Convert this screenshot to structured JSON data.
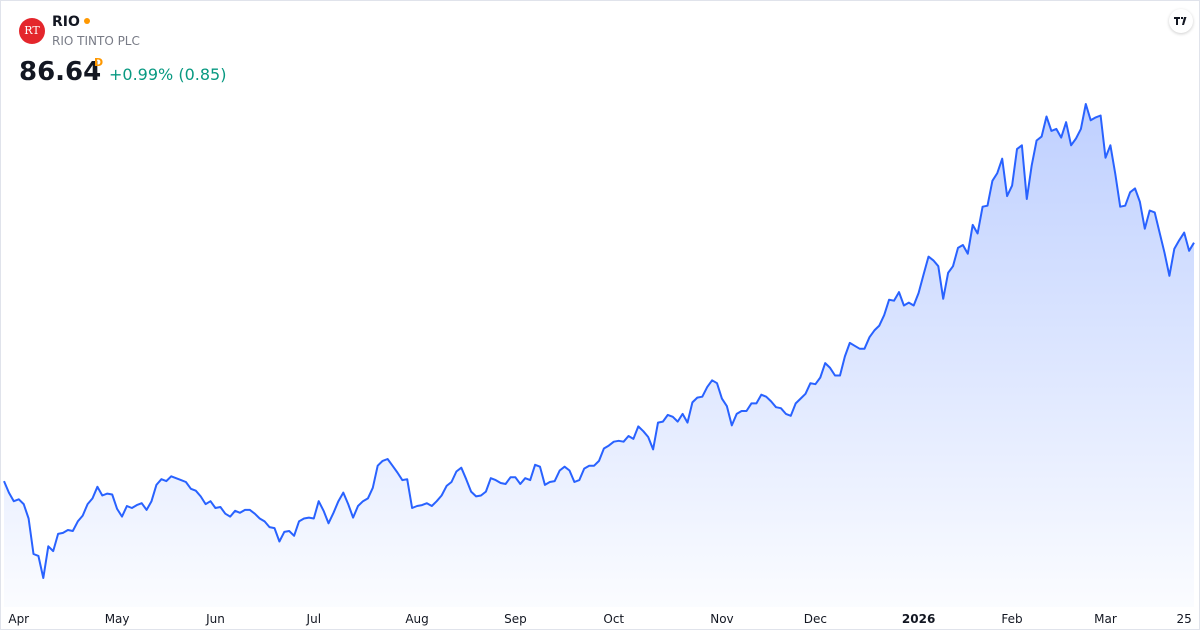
{
  "header": {
    "logo_text": "RT",
    "symbol": "RIO",
    "name": "RIO TINTO PLC",
    "price": "86.64",
    "interval": "D",
    "change": "+0.99% (0.85)"
  },
  "chart_data": {
    "type": "area",
    "color": "#2962ff",
    "categories": [
      null,
      null,
      null,
      "Apr",
      null,
      null,
      null,
      null,
      null,
      null,
      null,
      null,
      null,
      null,
      null,
      null,
      null,
      null,
      null,
      null,
      null,
      null,
      null,
      "May",
      null,
      null,
      null,
      null,
      null,
      null,
      null,
      null,
      null,
      null,
      null,
      null,
      null,
      null,
      null,
      null,
      null,
      null,
      null,
      "Jun",
      null,
      null,
      null,
      null,
      null,
      null,
      null,
      null,
      null,
      null,
      null,
      null,
      null,
      null,
      null,
      null,
      null,
      null,
      null,
      "Jul",
      null,
      null,
      null,
      null,
      null,
      null,
      null,
      null,
      null,
      null,
      null,
      null,
      null,
      null,
      null,
      null,
      null,
      null,
      null,
      null,
      "Aug",
      null,
      null,
      null,
      null,
      null,
      null,
      null,
      null,
      null,
      null,
      null,
      null,
      null,
      null,
      null,
      null,
      null,
      null,
      null,
      "Sep",
      null,
      null,
      null,
      null,
      null,
      null,
      null,
      null,
      null,
      null,
      null,
      null,
      null,
      null,
      null,
      null,
      null,
      null,
      null,
      "Oct",
      null,
      null,
      null,
      null,
      null,
      null,
      null,
      null,
      null,
      null,
      null,
      null,
      null,
      null,
      null,
      null,
      null,
      null,
      null,
      null,
      null,
      "Nov",
      null,
      null,
      null,
      null,
      null,
      null,
      null,
      null,
      null,
      null,
      null,
      null,
      null,
      null,
      null,
      null,
      null,
      null,
      "Dec",
      null,
      null,
      null,
      null,
      null,
      null,
      null,
      null,
      null,
      null,
      null,
      null,
      null,
      null,
      null,
      null,
      null,
      null,
      null,
      null,
      "2026",
      null,
      null,
      null,
      null,
      null,
      null,
      null,
      null,
      null,
      null,
      null,
      null,
      null,
      null,
      null,
      null,
      null,
      null,
      "Feb",
      null,
      null,
      null,
      null,
      null,
      null,
      null,
      null,
      null,
      null,
      null,
      null,
      null,
      null,
      null,
      null,
      null,
      null,
      "Mar",
      null,
      null,
      null,
      null,
      null,
      null,
      null,
      null,
      null,
      null,
      null,
      null,
      null,
      null,
      null,
      "25",
      null,
      null
    ],
    "values": [
      61.8,
      60.6,
      59.7,
      59.9,
      59.4,
      57.9,
      54.2,
      54.0,
      51.7,
      55.0,
      54.5,
      56.3,
      56.4,
      56.7,
      56.6,
      57.6,
      58.2,
      59.4,
      60.0,
      61.2,
      60.3,
      60.5,
      60.4,
      58.9,
      58.1,
      59.2,
      59.0,
      59.3,
      59.5,
      58.8,
      59.7,
      61.4,
      62.0,
      61.8,
      62.3,
      62.1,
      61.9,
      61.7,
      61.0,
      60.8,
      60.2,
      59.4,
      59.7,
      59.0,
      59.1,
      58.4,
      58.1,
      58.7,
      58.5,
      58.8,
      58.8,
      58.4,
      57.9,
      57.6,
      57.0,
      56.9,
      55.5,
      56.5,
      56.6,
      56.1,
      57.6,
      57.9,
      58.0,
      57.9,
      59.7,
      58.7,
      57.4,
      58.5,
      59.7,
      60.6,
      59.4,
      58.0,
      59.2,
      59.7,
      60.0,
      61.1,
      63.4,
      63.9,
      64.1,
      63.4,
      62.7,
      61.9,
      62.0,
      59.0,
      59.2,
      59.3,
      59.5,
      59.2,
      59.7,
      60.3,
      61.3,
      61.7,
      62.8,
      63.2,
      62.0,
      60.7,
      60.2,
      60.3,
      60.7,
      62.1,
      61.9,
      61.6,
      61.5,
      62.2,
      62.2,
      61.5,
      62.1,
      61.9,
      63.5,
      63.3,
      61.4,
      61.7,
      61.8,
      62.9,
      63.3,
      62.9,
      61.7,
      61.9,
      63.1,
      63.4,
      63.4,
      63.9,
      65.2,
      65.5,
      65.9,
      66.0,
      65.9,
      66.5,
      66.2,
      67.5,
      67.0,
      66.4,
      65.1,
      67.9,
      68.0,
      68.7,
      68.5,
      68.0,
      68.8,
      67.9,
      70.0,
      70.5,
      70.6,
      71.6,
      72.3,
      72.0,
      70.4,
      69.6,
      67.6,
      68.8,
      69.1,
      69.1,
      69.9,
      69.9,
      70.8,
      70.6,
      70.1,
      69.5,
      69.4,
      68.8,
      68.6,
      69.9,
      70.4,
      70.9,
      72.0,
      71.9,
      72.6,
      74.1,
      73.6,
      72.8,
      72.8,
      74.8,
      76.2,
      75.9,
      75.6,
      75.6,
      76.8,
      77.5,
      78.0,
      79.1,
      80.7,
      80.6,
      81.5,
      80.1,
      80.4,
      80.1,
      81.4,
      83.3,
      85.2,
      84.8,
      84.2,
      80.8,
      83.5,
      84.2,
      86.1,
      86.4,
      85.5,
      88.5,
      87.6,
      90.4,
      90.5,
      93.1,
      93.9,
      95.4,
      91.5,
      92.6,
      96.4,
      96.8,
      91.2,
      94.7,
      97.3,
      97.7,
      99.8,
      98.3,
      98.5,
      97.6,
      99.2,
      96.8,
      97.5,
      98.5,
      101.1,
      99.4,
      99.7,
      99.9,
      95.5,
      96.8,
      93.8,
      90.4,
      90.5,
      91.9,
      92.3,
      90.9,
      88.1,
      90.0,
      89.8,
      87.7,
      85.6,
      83.2,
      86.0,
      86.9,
      87.7,
      85.8,
      86.64
    ]
  }
}
